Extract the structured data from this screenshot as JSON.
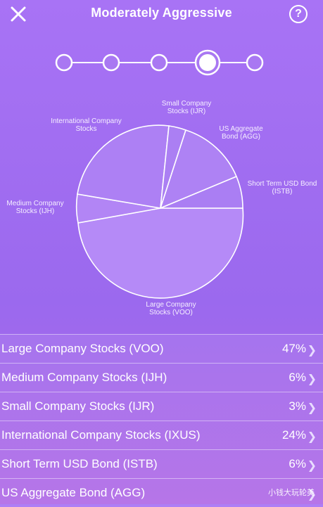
{
  "header": {
    "title": "Moderately Aggressive",
    "close_icon": "close-icon",
    "help_label": "?"
  },
  "stepper": {
    "steps": 5,
    "active_index": 3
  },
  "pie": {
    "labels": {
      "small": "Small Company Stocks (IJR)",
      "us_agg": "US Aggregate Bond (AGG)",
      "international": "International Company Stocks",
      "short_term": "Short Term USD Bond (ISTB)",
      "medium": "Medium Company Stocks (IJH)",
      "large": "Large Company Stocks (VOO)"
    }
  },
  "allocations": [
    {
      "name": "Large Company Stocks (VOO)",
      "percent": "47%"
    },
    {
      "name": "Medium Company Stocks (IJH)",
      "percent": "6%"
    },
    {
      "name": "Small Company Stocks (IJR)",
      "percent": "3%"
    },
    {
      "name": "International Company Stocks (IXUS)",
      "percent": "24%"
    },
    {
      "name": "Short Term USD Bond (ISTB)",
      "percent": "6%"
    },
    {
      "name": "US Aggregate Bond (AGG)",
      "percent": ""
    }
  ],
  "watermark": "小钱大玩轮美",
  "colors": {
    "accent": "#ffffff",
    "background": "#a06df0"
  }
}
